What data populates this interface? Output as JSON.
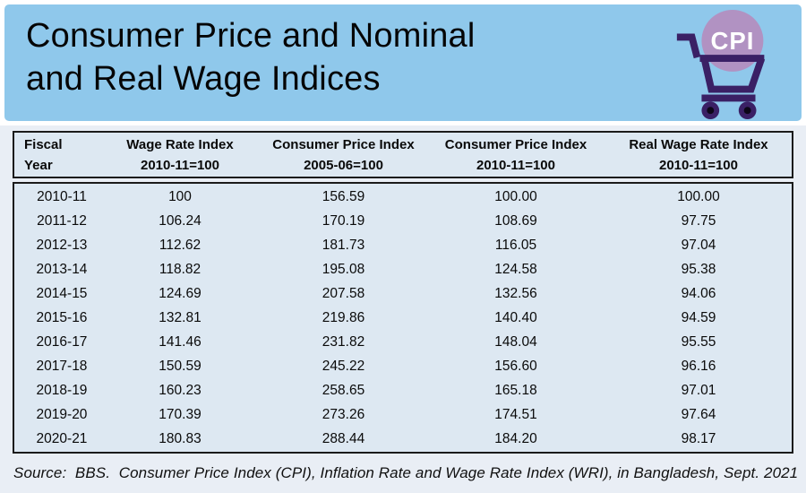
{
  "colors": {
    "banner_blue": "#8fc8eb",
    "page_bg": "#e9eef5",
    "table_fill": "#dde8f2",
    "table_border": "#1b1b1b",
    "cart_purple": "#3a2065",
    "badge_mauve": "#b192c2",
    "badge_text": "#ffffff"
  },
  "banner": {
    "title_line1": "Consumer Price and Nominal",
    "title_line2": "and Real Wage Indices",
    "cpi_badge": "CPI"
  },
  "table": {
    "headers": [
      [
        "Fiscal",
        "Year"
      ],
      [
        "Wage Rate Index",
        "2010-11=100"
      ],
      [
        "Consumer Price Index",
        "2005-06=100"
      ],
      [
        "Consumer Price Index",
        "2010-11=100"
      ],
      [
        "Real Wage Rate Index",
        "2010-11=100"
      ]
    ],
    "rows": [
      [
        "2010-11",
        "100",
        "156.59",
        "100.00",
        "100.00"
      ],
      [
        "2011-12",
        "106.24",
        "170.19",
        "108.69",
        "97.75"
      ],
      [
        "2012-13",
        "112.62",
        "181.73",
        "116.05",
        "97.04"
      ],
      [
        "2013-14",
        "118.82",
        "195.08",
        "124.58",
        "95.38"
      ],
      [
        "2014-15",
        "124.69",
        "207.58",
        "132.56",
        "94.06"
      ],
      [
        "2015-16",
        "132.81",
        "219.86",
        "140.40",
        "94.59"
      ],
      [
        "2016-17",
        "141.46",
        "231.82",
        "148.04",
        "95.55"
      ],
      [
        "2017-18",
        "150.59",
        "245.22",
        "156.60",
        "96.16"
      ],
      [
        "2018-19",
        "160.23",
        "258.65",
        "165.18",
        "97.01"
      ],
      [
        "2019-20",
        "170.39",
        "273.26",
        "174.51",
        "97.64"
      ],
      [
        "2020-21",
        "180.83",
        "288.44",
        "184.20",
        "98.17"
      ]
    ]
  },
  "source_note": "Source:  BBS.  Consumer Price Index (CPI), Inflation Rate and Wage Rate Index (WRI), in Bangladesh, Sept. 2021",
  "chart_data": {
    "type": "table",
    "title": "Consumer Price and Nominal and Real Wage Indices",
    "columns": [
      "Fiscal Year",
      "Wage Rate Index 2010-11=100",
      "Consumer Price Index 2005-06=100",
      "Consumer Price Index 2010-11=100",
      "Real Wage Rate Index 2010-11=100"
    ],
    "rows": [
      [
        "2010-11",
        100,
        156.59,
        100.0,
        100.0
      ],
      [
        "2011-12",
        106.24,
        170.19,
        108.69,
        97.75
      ],
      [
        "2012-13",
        112.62,
        181.73,
        116.05,
        97.04
      ],
      [
        "2013-14",
        118.82,
        195.08,
        124.58,
        95.38
      ],
      [
        "2014-15",
        124.69,
        207.58,
        132.56,
        94.06
      ],
      [
        "2015-16",
        132.81,
        219.86,
        140.4,
        94.59
      ],
      [
        "2016-17",
        141.46,
        231.82,
        148.04,
        95.55
      ],
      [
        "2017-18",
        150.59,
        245.22,
        156.6,
        96.16
      ],
      [
        "2018-19",
        160.23,
        258.65,
        165.18,
        97.01
      ],
      [
        "2019-20",
        170.39,
        273.26,
        174.51,
        97.64
      ],
      [
        "2020-21",
        180.83,
        288.44,
        184.2,
        98.17
      ]
    ],
    "source": "BBS. Consumer Price Index (CPI), Inflation Rate and Wage Rate Index (WRI), in Bangladesh, Sept. 2021"
  }
}
